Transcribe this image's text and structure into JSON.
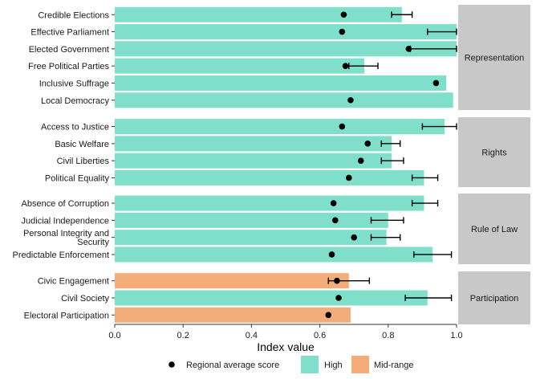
{
  "chart_data": {
    "type": "bar",
    "xlabel": "Index value",
    "xlim": [
      0,
      1.0
    ],
    "xticks": [
      "0.0",
      "0.2",
      "0.4",
      "0.6",
      "0.8",
      "1.0"
    ],
    "colors": {
      "High": "#7fdfcb",
      "Mid-range": "#f4ac78",
      "point": "#000000",
      "strip": "#c8c8c8"
    },
    "legend": {
      "placement": "bottom",
      "point_label": "Regional average score",
      "fill_labels": [
        "High",
        "Mid-range"
      ]
    },
    "panels": [
      {
        "name": "Representation",
        "rows": [
          {
            "label": "Credible Elections",
            "value": 0.84,
            "category": "High",
            "avg": 0.67,
            "err": [
              0.81,
              0.87
            ]
          },
          {
            "label": "Effective Parliament",
            "value": 1.0,
            "category": "High",
            "avg": 0.665,
            "err": [
              0.915,
              1.0
            ]
          },
          {
            "label": "Elected Government",
            "value": 1.0,
            "category": "High",
            "avg": 0.86,
            "err": [
              0.865,
              1.0
            ]
          },
          {
            "label": "Free Political Parties",
            "value": 0.73,
            "category": "High",
            "avg": 0.675,
            "err": [
              0.685,
              0.77
            ]
          },
          {
            "label": "Inclusive Suffrage",
            "value": 0.97,
            "category": "High",
            "avg": 0.94,
            "err": null
          },
          {
            "label": "Local Democracy",
            "value": 0.99,
            "category": "High",
            "avg": 0.69,
            "err": null
          }
        ]
      },
      {
        "name": "Rights",
        "rows": [
          {
            "label": "Access to Justice",
            "value": 0.965,
            "category": "High",
            "avg": 0.665,
            "err": [
              0.9,
              1.0
            ]
          },
          {
            "label": "Basic Welfare",
            "value": 0.81,
            "category": "High",
            "avg": 0.74,
            "err": [
              0.78,
              0.835
            ]
          },
          {
            "label": "Civil Liberties",
            "value": 0.81,
            "category": "High",
            "avg": 0.72,
            "err": [
              0.78,
              0.845
            ]
          },
          {
            "label": "Political Equality",
            "value": 0.905,
            "category": "High",
            "avg": 0.685,
            "err": [
              0.87,
              0.945
            ]
          }
        ]
      },
      {
        "name": "Rule of Law",
        "rows": [
          {
            "label": "Absence of Corruption",
            "value": 0.905,
            "category": "High",
            "avg": 0.64,
            "err": [
              0.87,
              0.945
            ]
          },
          {
            "label": "Judicial Independence",
            "value": 0.8,
            "category": "High",
            "avg": 0.645,
            "err": [
              0.75,
              0.845
            ]
          },
          {
            "label": "Personal Integrity and\nSecurity",
            "value": 0.795,
            "category": "High",
            "avg": 0.7,
            "err": [
              0.75,
              0.835
            ]
          },
          {
            "label": "Predictable Enforcement",
            "value": 0.93,
            "category": "High",
            "avg": 0.635,
            "err": [
              0.875,
              0.985
            ]
          }
        ]
      },
      {
        "name": "Participation",
        "rows": [
          {
            "label": "Civic Engagement",
            "value": 0.685,
            "category": "Mid-range",
            "avg": 0.65,
            "err": [
              0.625,
              0.745
            ]
          },
          {
            "label": "Civil Society",
            "value": 0.915,
            "category": "High",
            "avg": 0.655,
            "err": [
              0.85,
              0.985
            ]
          },
          {
            "label": "Electoral Participation",
            "value": 0.69,
            "category": "Mid-range",
            "avg": 0.625,
            "err": null
          }
        ]
      }
    ]
  }
}
